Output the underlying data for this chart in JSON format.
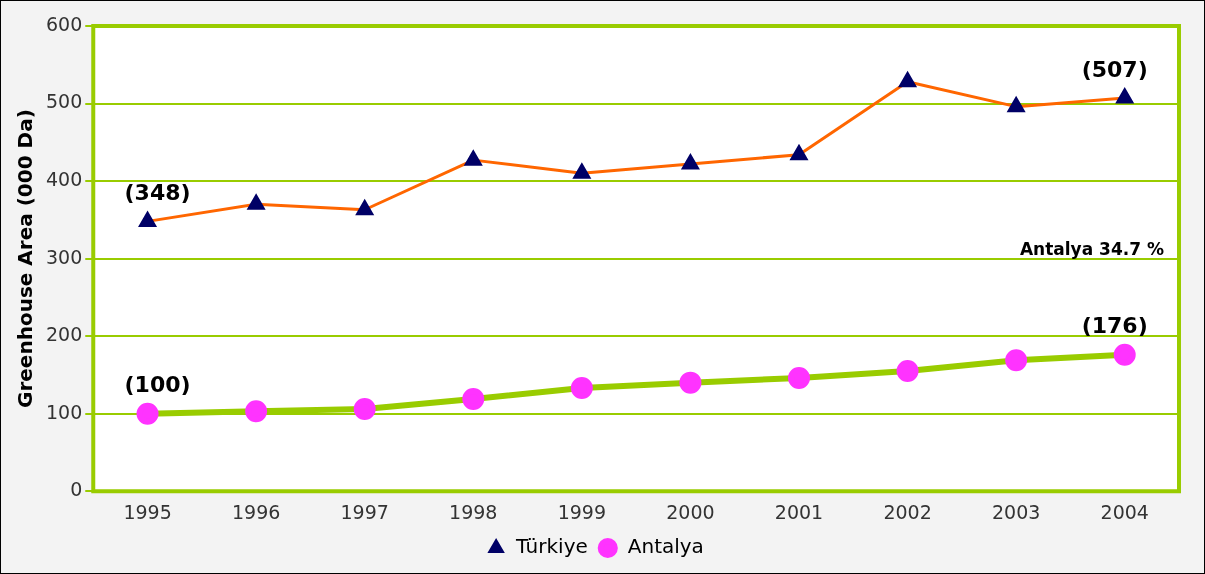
{
  "chart_data": {
    "type": "line",
    "ylabel": "Greenhouse Area (000 Da)",
    "categories": [
      "1995",
      "1996",
      "1997",
      "1998",
      "1999",
      "2000",
      "2001",
      "2002",
      "2003",
      "2004"
    ],
    "series": [
      {
        "name": "Türkiye",
        "color": "#ff6600",
        "marker": "triangle",
        "values": [
          348,
          370,
          363,
          427,
          410,
          422,
          434,
          528,
          496,
          507
        ]
      },
      {
        "name": "Antalya",
        "color": "#99cc00",
        "marker": "circle",
        "values": [
          100,
          103,
          106,
          119,
          133,
          140,
          146,
          155,
          169,
          176
        ]
      }
    ],
    "ylim": [
      0,
      600
    ],
    "yticks": [
      0,
      100,
      200,
      300,
      400,
      500,
      600
    ],
    "grid": "y",
    "legend": "bottom",
    "annotations": [
      {
        "text": "(348)",
        "x": "1995",
        "y": 348
      },
      {
        "text": "(507)",
        "x": "2004",
        "y": 507
      },
      {
        "text": "(100)",
        "x": "1995",
        "y": 100
      },
      {
        "text": "(176)",
        "x": "2004",
        "y": 176
      },
      "Antalya 34.7 %"
    ]
  }
}
